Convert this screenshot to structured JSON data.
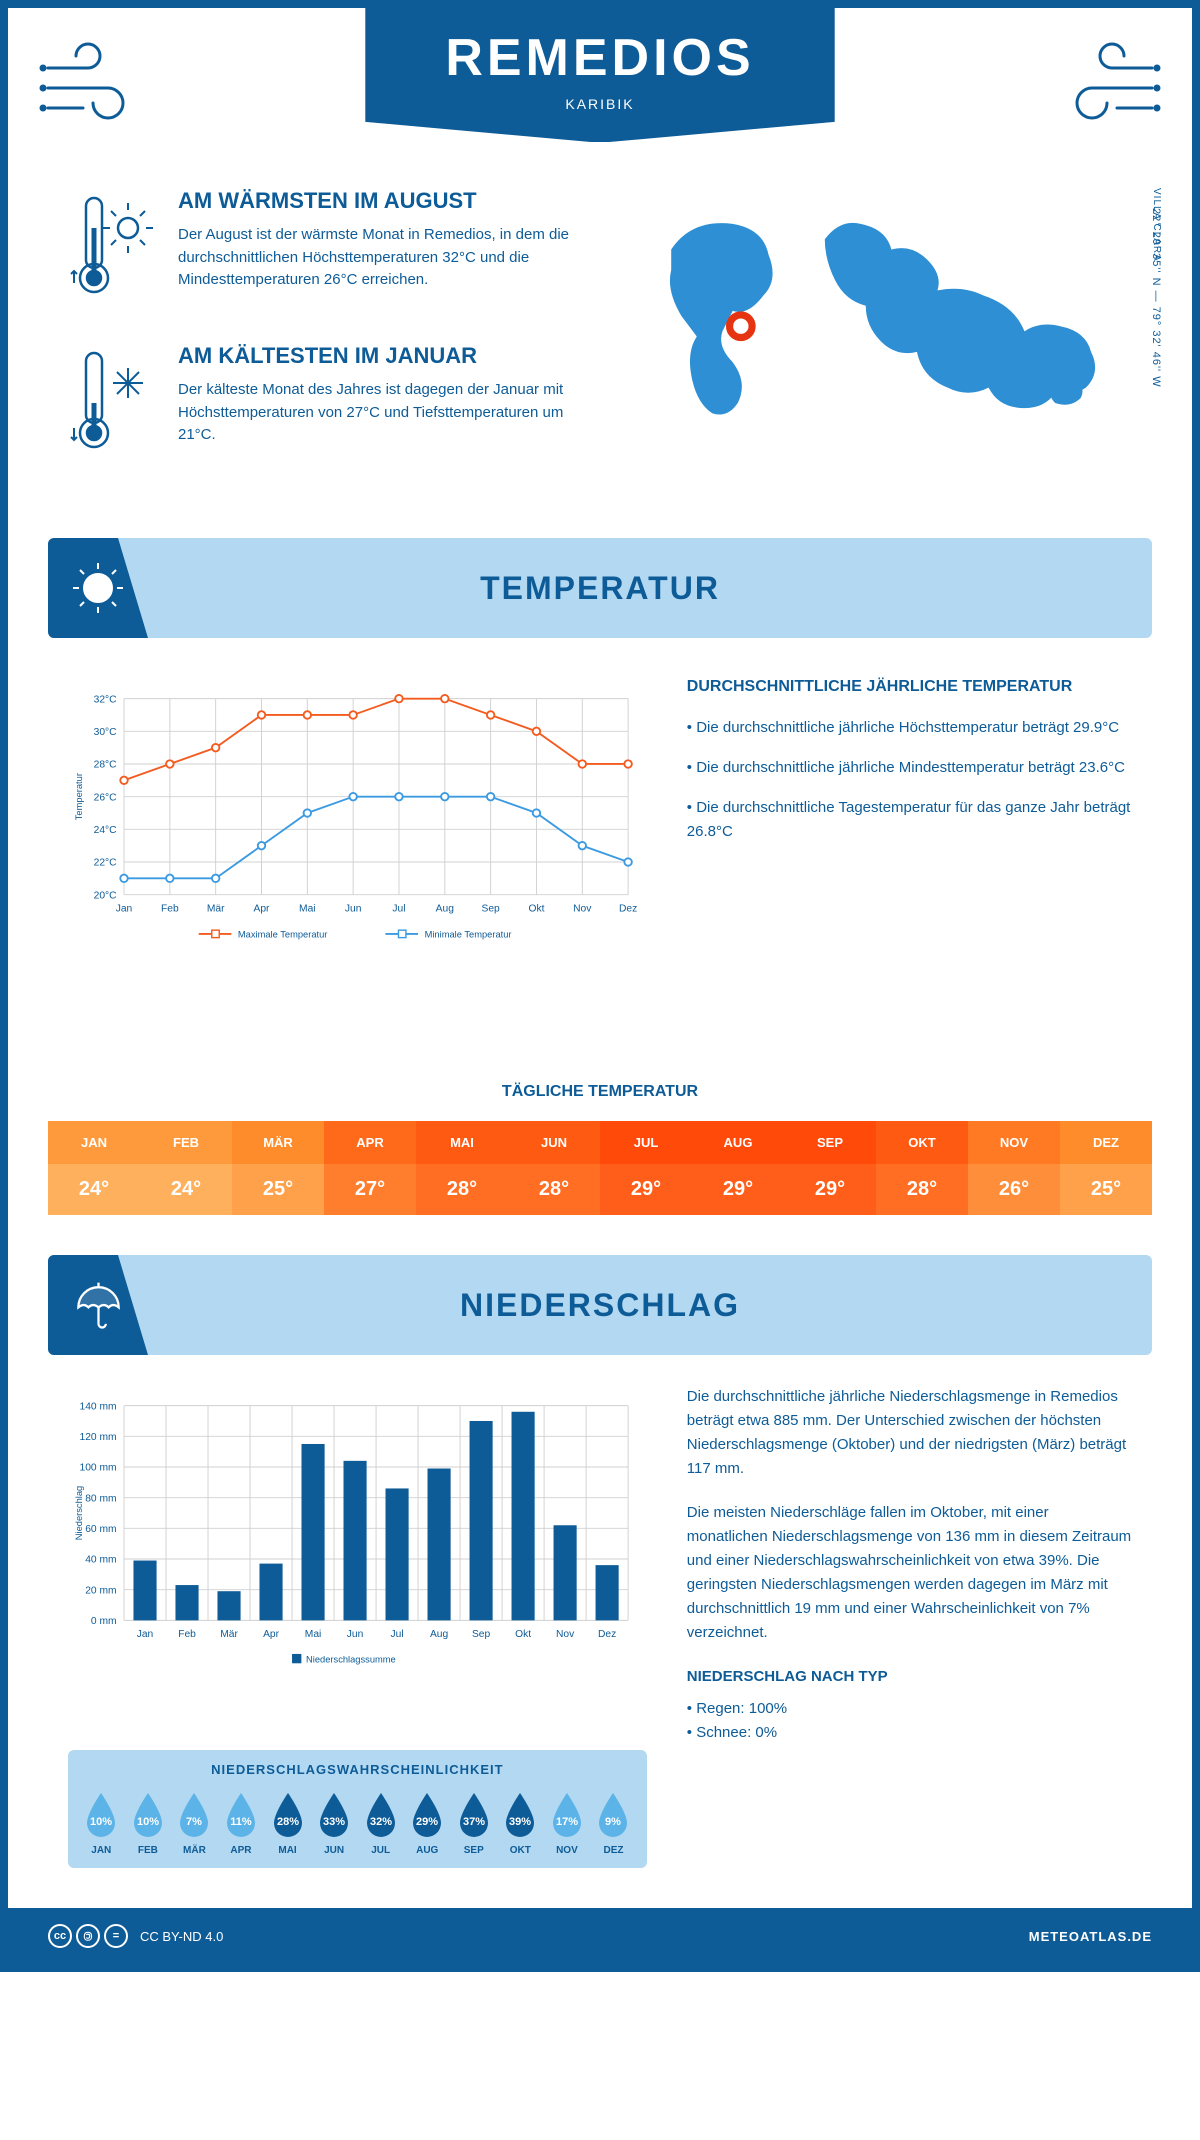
{
  "header": {
    "title": "REMEDIOS",
    "subtitle": "KARIBIK"
  },
  "coords": "22° 29' 35'' N — 79° 32' 46'' W",
  "region": "VILLA CLARA",
  "warmest": {
    "heading": "AM WÄRMSTEN IM AUGUST",
    "text": "Der August ist der wärmste Monat in Remedios, in dem die durchschnittlichen Höchsttemperaturen 32°C und die Mindesttemperaturen 26°C erreichen."
  },
  "coldest": {
    "heading": "AM KÄLTESTEN IM JANUAR",
    "text": "Der kälteste Monat des Jahres ist dagegen der Januar mit Höchsttemperaturen von 27°C und Tiefsttemperaturen um 21°C."
  },
  "temp_section_title": "TEMPERATUR",
  "temp_chart": {
    "type": "line",
    "months": [
      "Jan",
      "Feb",
      "Mär",
      "Apr",
      "Mai",
      "Jun",
      "Jul",
      "Aug",
      "Sep",
      "Okt",
      "Nov",
      "Dez"
    ],
    "max": [
      27,
      28,
      29,
      31,
      31,
      31,
      32,
      32,
      31,
      30,
      28,
      28
    ],
    "min": [
      21,
      21,
      21,
      23,
      25,
      26,
      26,
      26,
      26,
      25,
      23,
      22
    ],
    "max_color": "#f45b1f",
    "min_color": "#3b9ae1",
    "grid_color": "#d0d0d0",
    "text_color": "#0d5b97",
    "ylabel": "Temperatur",
    "ylim": [
      20,
      32
    ],
    "ytick_step": 2,
    "y_suffix": "°C",
    "legend_max": "Maximale Temperatur",
    "legend_min": "Minimale Temperatur",
    "line_width": 2,
    "marker_size": 4
  },
  "temp_info": {
    "heading": "DURCHSCHNITTLICHE JÄHRLICHE TEMPERATUR",
    "bullets": [
      "• Die durchschnittliche jährliche Höchsttemperatur beträgt 29.9°C",
      "• Die durchschnittliche jährliche Mindesttemperatur beträgt 23.6°C",
      "• Die durchschnittliche Tagestemperatur für das ganze Jahr beträgt 26.8°C"
    ]
  },
  "daily_temp": {
    "heading": "TÄGLICHE TEMPERATUR",
    "months": [
      "JAN",
      "FEB",
      "MÄR",
      "APR",
      "MAI",
      "JUN",
      "JUL",
      "AUG",
      "SEP",
      "OKT",
      "NOV",
      "DEZ"
    ],
    "values": [
      "24°",
      "24°",
      "25°",
      "27°",
      "28°",
      "28°",
      "29°",
      "29°",
      "29°",
      "28°",
      "26°",
      "25°"
    ],
    "header_colors": [
      "#ff9a3c",
      "#ff9a3c",
      "#ff8c2a",
      "#ff6a1a",
      "#ff5a12",
      "#ff5a12",
      "#ff4a0a",
      "#ff4a0a",
      "#ff4a0a",
      "#ff5a12",
      "#ff7a22",
      "#ff8c2a"
    ],
    "value_colors": [
      "#ffb05c",
      "#ffb05c",
      "#ffa04a",
      "#ff7e2e",
      "#ff6e22",
      "#ff6e22",
      "#ff5e1a",
      "#ff5e1a",
      "#ff5e1a",
      "#ff6e22",
      "#ff8e3a",
      "#ffa04a"
    ]
  },
  "precip_section_title": "NIEDERSCHLAG",
  "precip_chart": {
    "type": "bar",
    "months": [
      "Jan",
      "Feb",
      "Mär",
      "Apr",
      "Mai",
      "Jun",
      "Jul",
      "Aug",
      "Sep",
      "Okt",
      "Nov",
      "Dez"
    ],
    "values": [
      39,
      23,
      19,
      37,
      115,
      104,
      86,
      99,
      130,
      136,
      62,
      36
    ],
    "bar_color": "#0d5b97",
    "grid_color": "#d0d0d0",
    "text_color": "#0d5b97",
    "ylabel": "Niederschlag",
    "ylim": [
      0,
      140
    ],
    "ytick_step": 20,
    "y_suffix": " mm",
    "legend": "Niederschlagssumme",
    "bar_width_ratio": 0.55
  },
  "precip_text1": "Die durchschnittliche jährliche Niederschlagsmenge in Remedios beträgt etwa 885 mm. Der Unterschied zwischen der höchsten Niederschlagsmenge (Oktober) und der niedrigsten (März) beträgt 117 mm.",
  "precip_text2": "Die meisten Niederschläge fallen im Oktober, mit einer monatlichen Niederschlagsmenge von 136 mm in diesem Zeitraum und einer Niederschlagswahrscheinlichkeit von etwa 39%. Die geringsten Niederschlagsmengen werden dagegen im März mit durchschnittlich 19 mm und einer Wahrscheinlichkeit von 7% verzeichnet.",
  "precip_type": {
    "heading": "NIEDERSCHLAG NACH TYP",
    "items": [
      "• Regen: 100%",
      "• Schnee: 0%"
    ]
  },
  "prob": {
    "heading": "NIEDERSCHLAGSWAHRSCHEINLICHKEIT",
    "months": [
      "JAN",
      "FEB",
      "MÄR",
      "APR",
      "MAI",
      "JUN",
      "JUL",
      "AUG",
      "SEP",
      "OKT",
      "NOV",
      "DEZ"
    ],
    "values": [
      "10%",
      "10%",
      "7%",
      "11%",
      "28%",
      "33%",
      "32%",
      "29%",
      "37%",
      "39%",
      "17%",
      "9%"
    ],
    "colors": [
      "#5cb3e8",
      "#5cb3e8",
      "#5cb3e8",
      "#5cb3e8",
      "#0d5b97",
      "#0d5b97",
      "#0d5b97",
      "#0d5b97",
      "#0d5b97",
      "#0d5b97",
      "#5cb3e8",
      "#5cb3e8"
    ]
  },
  "footer": {
    "license": "CC BY-ND 4.0",
    "site": "METEOATLAS.DE"
  },
  "colors": {
    "primary": "#0d5b97",
    "light_blue": "#b3d9f2",
    "map_blue": "#2e8fd4",
    "marker_red": "#e63312"
  }
}
